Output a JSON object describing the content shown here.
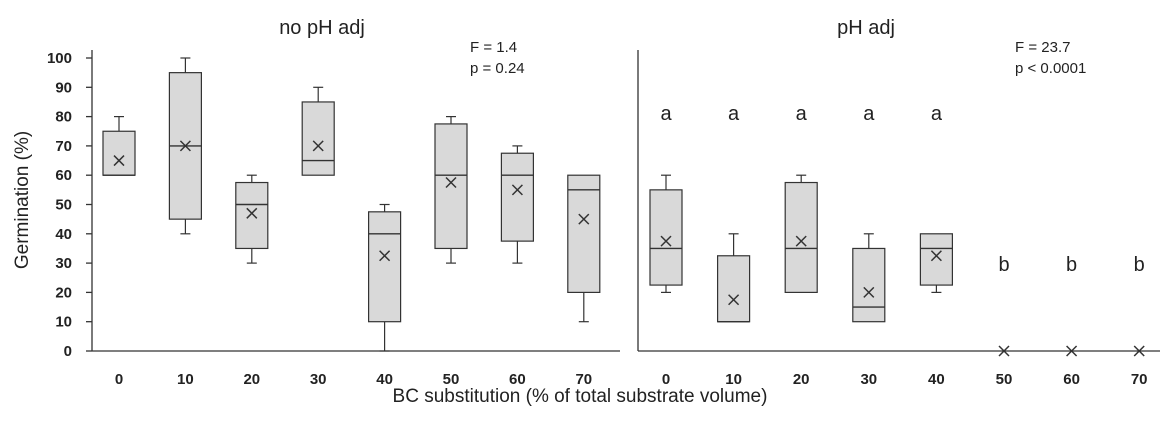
{
  "chart_data": {
    "type": "boxplot",
    "ylabel": "Germination (%)",
    "xlabel": "BC substitution (% of total substrate volume)",
    "ylim": [
      0,
      100
    ],
    "yticks": [
      0,
      10,
      20,
      30,
      40,
      50,
      60,
      70,
      80,
      90,
      100
    ],
    "categories": [
      "0",
      "10",
      "20",
      "30",
      "40",
      "50",
      "60",
      "70"
    ],
    "panels": [
      {
        "title": "no pH adj",
        "stats": [
          "F = 1.4",
          "p = 0.24"
        ],
        "boxes": [
          {
            "x": "0",
            "min": 60,
            "q1": 60,
            "median": 60,
            "q3": 75,
            "max": 80,
            "mean": 65,
            "letter": ""
          },
          {
            "x": "10",
            "min": 40,
            "q1": 45,
            "median": 70,
            "q3": 95,
            "max": 100,
            "mean": 70,
            "letter": ""
          },
          {
            "x": "20",
            "min": 30,
            "q1": 35,
            "median": 50,
            "q3": 57.5,
            "max": 60,
            "mean": 47,
            "letter": ""
          },
          {
            "x": "30",
            "min": 60,
            "q1": 60,
            "median": 65,
            "q3": 85,
            "max": 90,
            "mean": 70,
            "letter": ""
          },
          {
            "x": "40",
            "min": 0,
            "q1": 10,
            "median": 40,
            "q3": 47.5,
            "max": 50,
            "mean": 32.5,
            "letter": ""
          },
          {
            "x": "50",
            "min": 30,
            "q1": 35,
            "median": 60,
            "q3": 77.5,
            "max": 80,
            "mean": 57.5,
            "letter": ""
          },
          {
            "x": "60",
            "min": 30,
            "q1": 37.5,
            "median": 60,
            "q3": 67.5,
            "max": 70,
            "mean": 55,
            "letter": ""
          },
          {
            "x": "70",
            "min": 10,
            "q1": 20,
            "median": 55,
            "q3": 60,
            "max": 60,
            "mean": 45,
            "letter": ""
          }
        ]
      },
      {
        "title": "pH adj",
        "stats": [
          "F = 23.7",
          "p < 0.0001"
        ],
        "boxes": [
          {
            "x": "0",
            "min": 20,
            "q1": 22.5,
            "median": 35,
            "q3": 55,
            "max": 60,
            "mean": 37.5,
            "letter": "a"
          },
          {
            "x": "10",
            "min": 10,
            "q1": 10,
            "median": 10,
            "q3": 32.5,
            "max": 40,
            "mean": 17.5,
            "letter": "a"
          },
          {
            "x": "20",
            "min": 20,
            "q1": 20,
            "median": 35,
            "q3": 57.5,
            "max": 60,
            "mean": 37.5,
            "letter": "a"
          },
          {
            "x": "30",
            "min": 10,
            "q1": 10,
            "median": 15,
            "q3": 35,
            "max": 40,
            "mean": 20,
            "letter": "a"
          },
          {
            "x": "40",
            "min": 20,
            "q1": 22.5,
            "median": 35,
            "q3": 40,
            "max": 40,
            "mean": 32.5,
            "letter": "a"
          },
          {
            "x": "50",
            "min": 0,
            "q1": 0,
            "median": 0,
            "q3": 0,
            "max": 0,
            "mean": 0,
            "letter": "b"
          },
          {
            "x": "60",
            "min": 0,
            "q1": 0,
            "median": 0,
            "q3": 0,
            "max": 0,
            "mean": 0,
            "letter": "b"
          },
          {
            "x": "70",
            "min": 0,
            "q1": 0,
            "median": 0,
            "q3": 0,
            "max": 0,
            "mean": 0,
            "letter": "b"
          }
        ]
      }
    ]
  }
}
